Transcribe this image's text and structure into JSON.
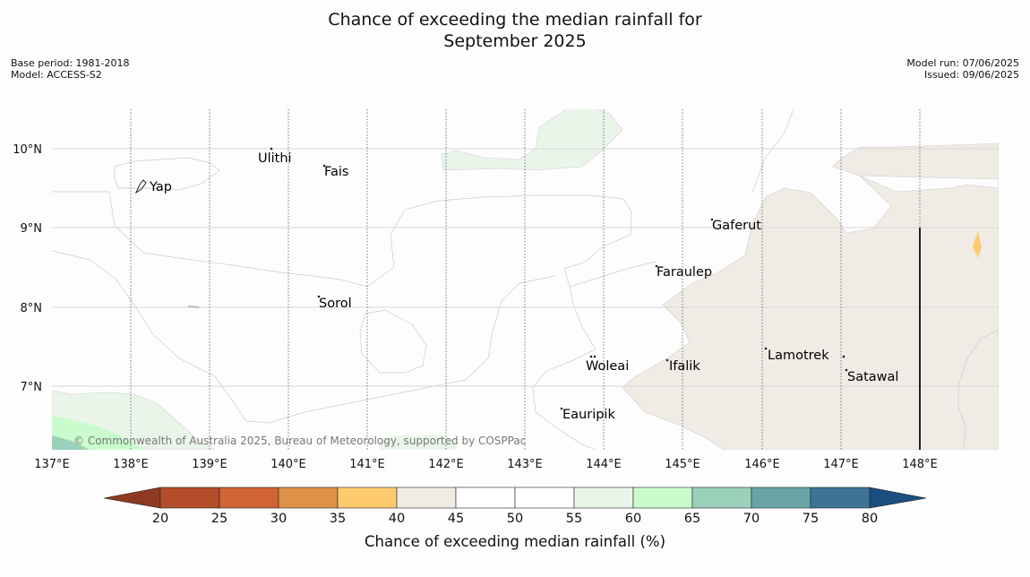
{
  "title_line1": "Chance of exceeding the median rainfall for",
  "title_line2": "September 2025",
  "meta_left": {
    "base_period": "Base period: 1981-2018",
    "model": "Model: ACCESS-S2"
  },
  "meta_right": {
    "model_run": "Model run: 07/06/2025",
    "issued": "Issued: 09/06/2025"
  },
  "lon_ticks": [
    "137°E",
    "138°E",
    "139°E",
    "140°E",
    "141°E",
    "142°E",
    "143°E",
    "144°E",
    "145°E",
    "146°E",
    "147°E",
    "148°E"
  ],
  "lat_ticks": [
    "10°N",
    "9°N",
    "8°N",
    "7°N"
  ],
  "places": [
    "Ulithi",
    "Fais",
    "Yap",
    "Gaferut",
    "Faraulep",
    "Sorol",
    "Lamotrek",
    "Woleai",
    "Ifalik",
    "Satawal",
    "Eauripik"
  ],
  "copyright": "© Commonwealth of Australia 2025, Bureau of Meteorology, supported by COSPPac",
  "colorbar": {
    "label": "Chance of exceeding median rainfall (%)",
    "ticks": [
      "20",
      "25",
      "30",
      "35",
      "40",
      "45",
      "50",
      "55",
      "60",
      "65",
      "70",
      "75",
      "80"
    ],
    "colors": [
      "#8e3a22",
      "#b34d2a",
      "#cf6434",
      "#e09248",
      "#fdcb6e",
      "#f0ebe4",
      "#ffffff",
      "#ffffff",
      "#eaf5ea",
      "#c9fbcd",
      "#9bd1ba",
      "#6aa4a6",
      "#3d7496",
      "#1a4f80"
    ]
  }
}
